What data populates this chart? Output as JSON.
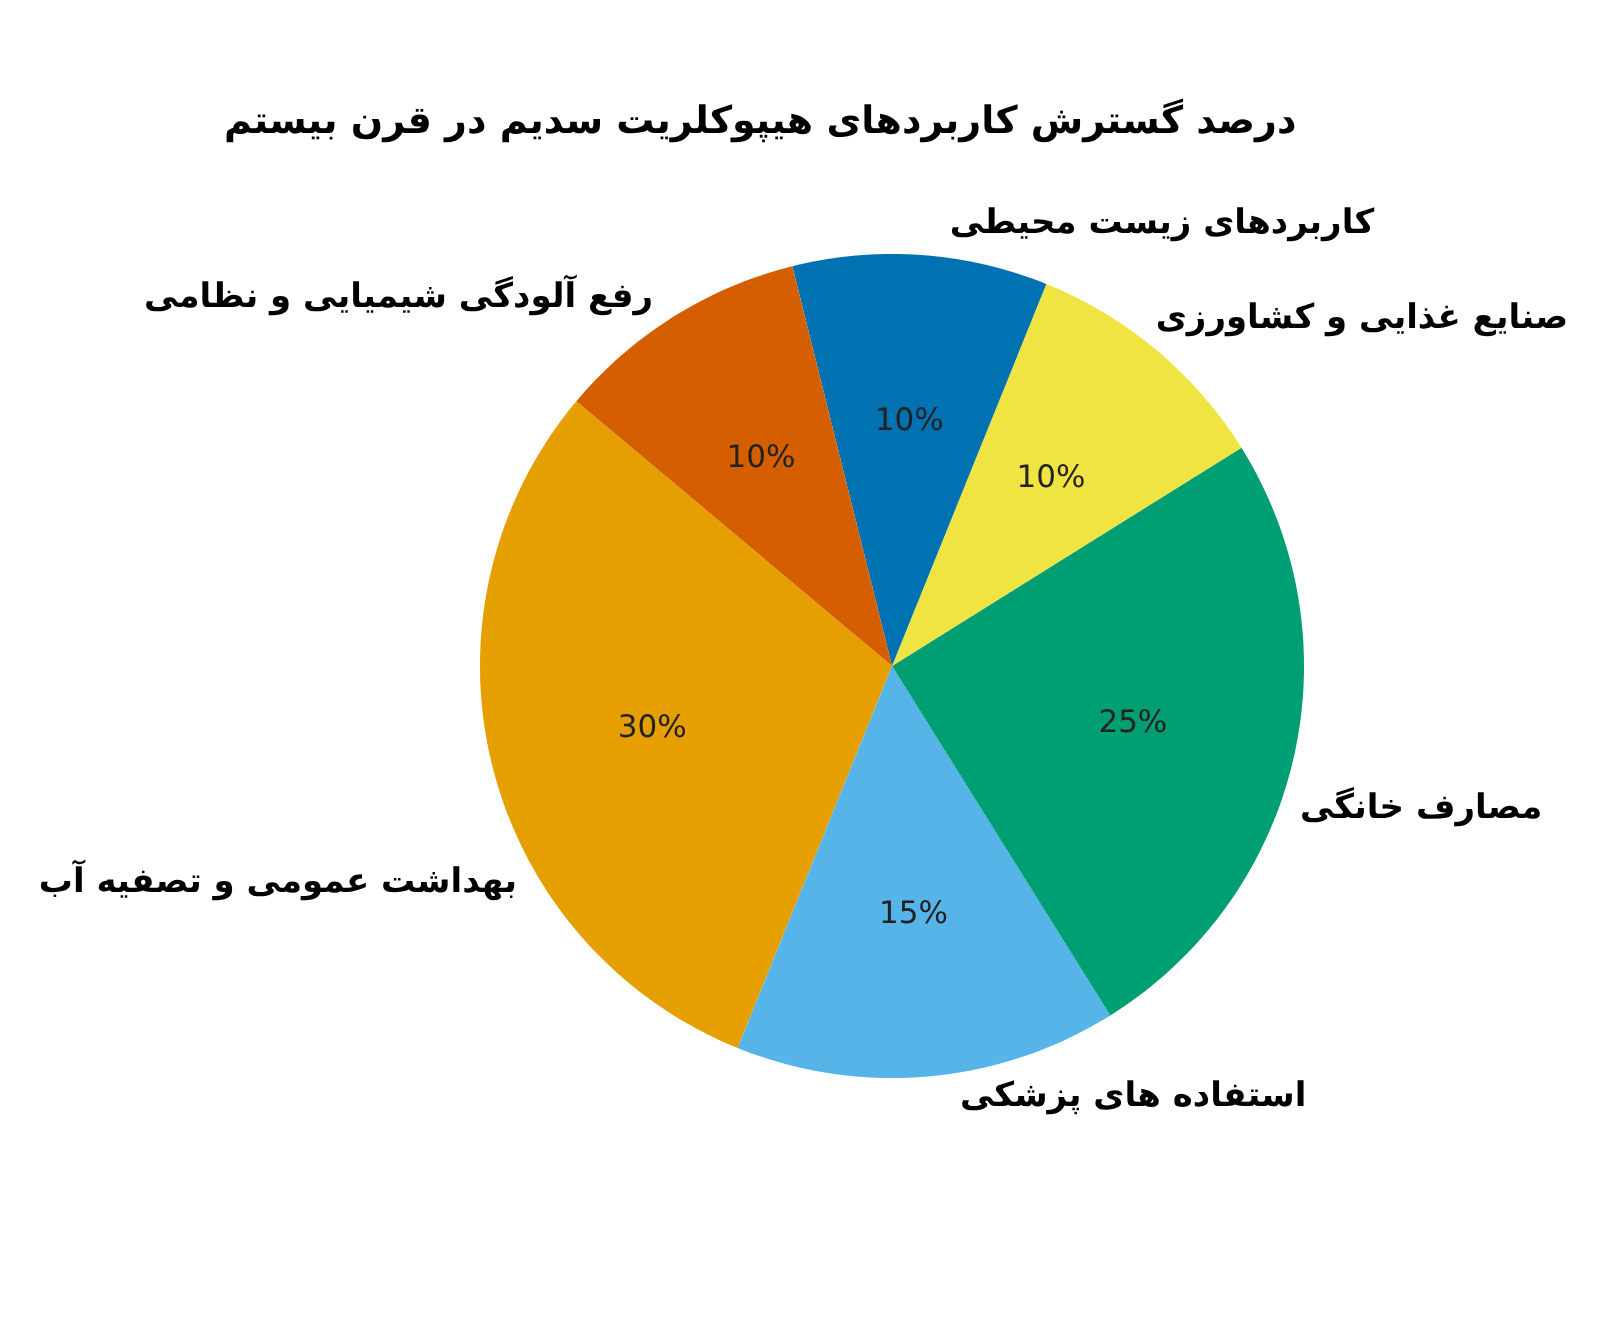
{
  "chart_data": {
    "type": "pie",
    "title": "درصد گسترش کاربردهای هیپوکلریت سدیم در قرن بیستم",
    "categories": [
      "بهداشت عمومی و تصفیه آب",
      "استفاده های پزشکی",
      "مصارف خانگی",
      "صنایع غذایی و کشاورزی",
      "کاربردهای زیست محیطی",
      "رفع آلودگی شیمیایی و نظامی"
    ],
    "values": [
      30,
      15,
      25,
      10,
      10,
      10
    ],
    "value_labels": [
      "30%",
      "15%",
      "25%",
      "10%",
      "10%",
      "10%"
    ],
    "colors": [
      "#e69f00",
      "#56b4e9",
      "#009e73",
      "#f0e442",
      "#0072b2",
      "#d55e00"
    ]
  }
}
